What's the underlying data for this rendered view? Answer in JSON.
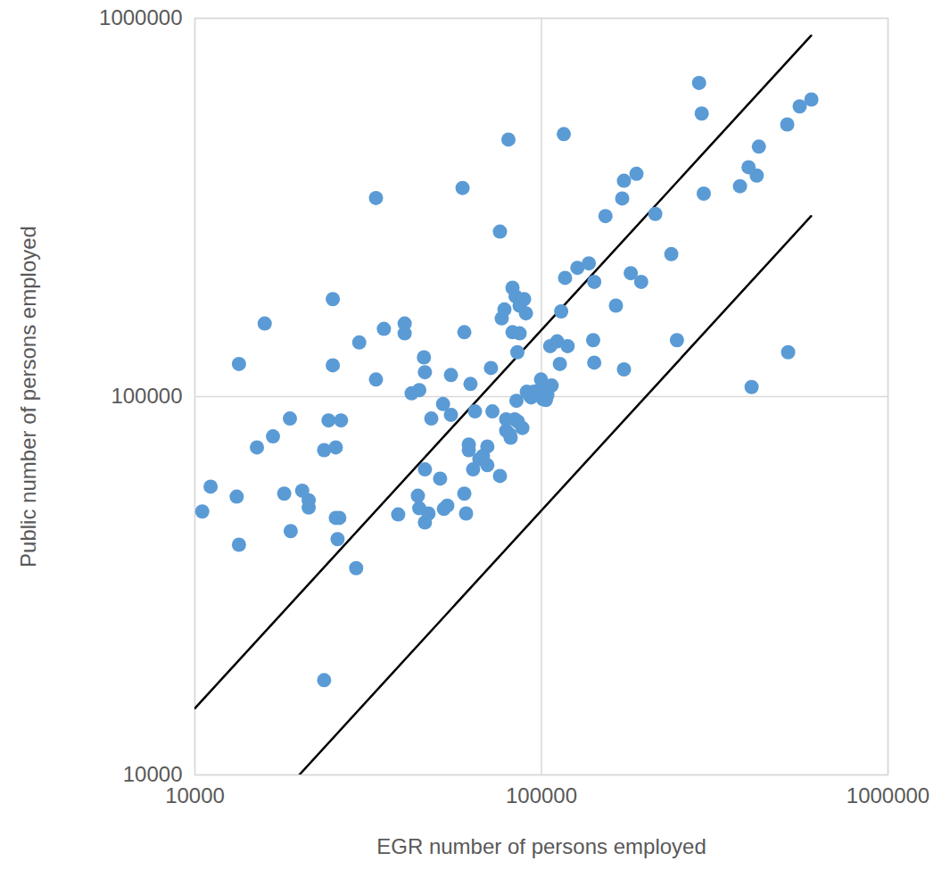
{
  "chart_data": {
    "type": "scatter",
    "xlabel": "EGR number of persons employed",
    "ylabel": "Public number of persons employed",
    "log": true,
    "grid": true,
    "marker": "circle",
    "color": "#5b9bd5",
    "xlim": [
      10000,
      1000000
    ],
    "ylim": [
      10000,
      1000000
    ],
    "xticks": [
      10000,
      100000,
      1000000
    ],
    "yticks": [
      10000,
      100000,
      1000000
    ],
    "x": [
      10500,
      11100,
      13200,
      13400,
      13400,
      15100,
      15900,
      16800,
      18100,
      18800,
      18900,
      20400,
      21300,
      21300,
      23600,
      23600,
      24300,
      25000,
      25000,
      25500,
      25500,
      26100,
      25800,
      26400,
      29200,
      29800,
      33300,
      33300,
      35100,
      38600,
      40300,
      40300,
      42200,
      44400,
      44000,
      44400,
      45800,
      46100,
      46100,
      46100,
      47200,
      48100,
      51000,
      52000,
      52300,
      53500,
      54800,
      54800,
      59200,
      59900,
      59900,
      60600,
      61700,
      61700,
      62400,
      63500,
      64300,
      66200,
      67800,
      69800,
      69800,
      71500,
      72200,
      75900,
      75900,
      76800,
      78200,
      79100,
      79100,
      80300,
      81000,
      81500,
      82500,
      82500,
      83700,
      84200,
      84700,
      85200,
      85500,
      86500,
      86500,
      88100,
      89100,
      90200,
      90700,
      92300,
      93400,
      95100,
      96200,
      98500,
      99700,
      101000,
      103000,
      104000,
      107000,
      106000,
      111000,
      113000,
      114000,
      116000,
      117000,
      119000,
      127000,
      137000,
      141000,
      142000,
      142000,
      153000,
      164000,
      171000,
      173000,
      173000,
      181000,
      188000,
      194000,
      213000,
      237000,
      246000,
      285000,
      290000,
      294000,
      374000,
      396000,
      404000,
      418000,
      424000,
      512000,
      515000,
      556000,
      601000
    ],
    "values": [
      49700,
      57800,
      54400,
      122000,
      40600,
      73400,
      156000,
      78500,
      55400,
      87500,
      44100,
      56400,
      53200,
      50900,
      72200,
      17800,
      86500,
      181000,
      121000,
      73400,
      47800,
      47800,
      42000,
      86500,
      35200,
      139000,
      335000,
      111000,
      151000,
      48800,
      156000,
      147000,
      102000,
      104000,
      54700,
      50700,
      127000,
      116000,
      64200,
      46500,
      49100,
      87500,
      60700,
      95600,
      50500,
      51500,
      114000,
      89500,
      356000,
      148000,
      55400,
      49100,
      74700,
      72200,
      108000,
      64200,
      91400,
      68300,
      69700,
      73800,
      65900,
      119000,
      91400,
      273000,
      61700,
      161000,
      170000,
      87100,
      81300,
      478000,
      79500,
      77900,
      194000,
      148000,
      87100,
      184000,
      97500,
      131000,
      85900,
      174000,
      147000,
      82600,
      181000,
      166000,
      103000,
      101000,
      99500,
      103000,
      101000,
      104000,
      111000,
      98500,
      98000,
      101000,
      107000,
      136000,
      140000,
      122000,
      168000,
      494000,
      206000,
      136000,
      219000,
      225000,
      141000,
      123000,
      201000,
      300000,
      174000,
      334000,
      372000,
      118000,
      212000,
      388000,
      201000,
      304000,
      238000,
      141000,
      675000,
      560000,
      344000,
      360000,
      404000,
      106000,
      384000,
      458000,
      524000,
      131000,
      585000,
      610000
    ],
    "lines": [
      {
        "x": [
          10000,
          600000
        ],
        "values": [
          15000,
          900000
        ]
      },
      {
        "x": [
          20000,
          600000
        ],
        "values": [
          10000,
          300000
        ]
      }
    ]
  }
}
